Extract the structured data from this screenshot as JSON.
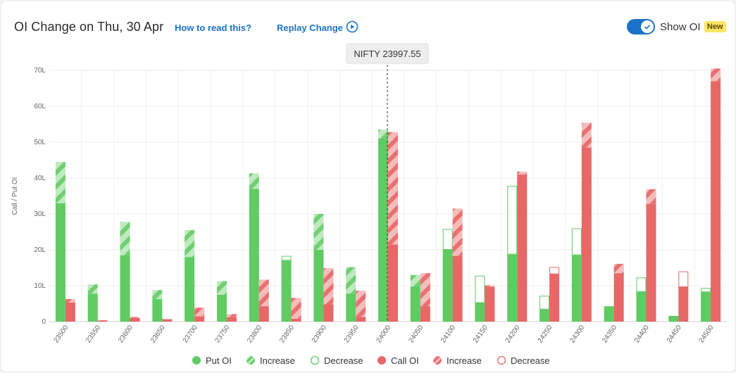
{
  "header": {
    "title": "OI Change on Thu, 30 Apr",
    "how_link": "How to read this?",
    "replay_label": "Replay Change",
    "toggle_label": "Show OI",
    "badge": "New"
  },
  "tooltip": {
    "label": "NIFTY 23997.55"
  },
  "colors": {
    "put": "#5fcb62",
    "put_light": "#b6e8b6",
    "call": "#e86767",
    "call_light": "#f4b3b3",
    "accent": "#1a73c9",
    "badge": "#fce564"
  },
  "legend": [
    {
      "label": "Put OI",
      "kind": "solid",
      "color": "put"
    },
    {
      "label": "Increase",
      "kind": "striped",
      "color": "put"
    },
    {
      "label": "Decrease",
      "kind": "hollow",
      "color": "put"
    },
    {
      "label": "Call OI",
      "kind": "solid",
      "color": "call"
    },
    {
      "label": "Increase",
      "kind": "striped",
      "color": "call"
    },
    {
      "label": "Decrease",
      "kind": "hollow",
      "color": "call"
    }
  ],
  "chart_data": {
    "type": "bar",
    "ylabel": "Call / Put OI",
    "ylim": [
      0,
      70
    ],
    "yticks": [
      0,
      10,
      20,
      30,
      40,
      50,
      60,
      70
    ],
    "ytick_labels": [
      "0",
      "10L",
      "20L",
      "30L",
      "40L",
      "50L",
      "60L",
      "70L"
    ],
    "marker_strike": "24000",
    "marker_label": "NIFTY 23997.55",
    "grid": true,
    "legend_position": "bottom",
    "categories": [
      "23500",
      "23550",
      "23600",
      "23650",
      "23700",
      "23750",
      "23800",
      "23850",
      "23900",
      "23950",
      "24000",
      "24050",
      "24100",
      "24150",
      "24200",
      "24250",
      "24300",
      "24350",
      "24400",
      "24450",
      "24500"
    ],
    "series": [
      {
        "name": "Put OI",
        "side": "put",
        "prev": [
          33,
          7.8,
          18.5,
          6.3,
          18,
          7.5,
          37,
          18.3,
          20,
          7.8,
          51,
          9.8,
          25.8,
          12.8,
          37.8,
          7.2,
          26,
          4.3,
          12.3,
          1.7,
          9.4
        ],
        "current": [
          44.5,
          10.4,
          27.8,
          8.8,
          25.5,
          11.3,
          41.3,
          17,
          30,
          15.2,
          53.5,
          13,
          20,
          5.2,
          18.7,
          3.4,
          18.5,
          4,
          8.3,
          1.6,
          8.2
        ]
      },
      {
        "name": "Call OI",
        "side": "call",
        "prev": [
          5.3,
          0.3,
          1,
          0.6,
          1.5,
          1.2,
          4.3,
          0.8,
          4.8,
          1.3,
          21.5,
          4.3,
          18.3,
          9.7,
          41,
          15.2,
          48.5,
          13.5,
          32.8,
          14,
          67
        ],
        "current": [
          6.3,
          0.4,
          1.3,
          0.8,
          3.9,
          2.1,
          11.7,
          6.6,
          14.9,
          8.6,
          52.8,
          13.5,
          31.5,
          10.1,
          41.8,
          13.2,
          55.4,
          16.1,
          36.9,
          9.6,
          70.5
        ]
      }
    ]
  }
}
